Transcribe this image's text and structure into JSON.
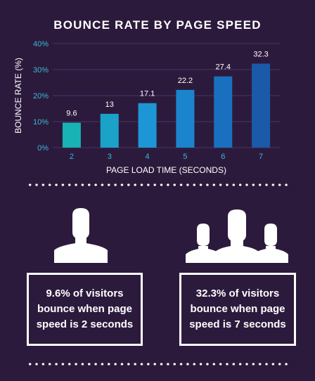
{
  "title": "BOUNCE RATE BY PAGE SPEED",
  "chart_data": {
    "type": "bar",
    "title": "BOUNCE RATE BY PAGE SPEED",
    "xlabel": "PAGE LOAD TIME (SECONDS)",
    "ylabel": "BOUNCE RATE (%)",
    "categories": [
      "2",
      "3",
      "4",
      "5",
      "6",
      "7"
    ],
    "values": [
      9.6,
      13,
      17.1,
      22.2,
      27.4,
      32.3
    ],
    "value_labels": [
      "9.6",
      "13",
      "17.1",
      "22.2",
      "27.4",
      "32.3"
    ],
    "ylim": [
      0,
      40
    ],
    "yticks": [
      "0%",
      "10%",
      "20%",
      "30%",
      "40%"
    ],
    "grid": true,
    "colors": {
      "bar_gradient": [
        "#18b3b4",
        "#1ba2c9",
        "#1d96d5",
        "#1a85cc",
        "#1a70bf",
        "#1a5aa8"
      ],
      "tick_labels": "#38b9d6",
      "gridline": "#45346a"
    }
  },
  "stats": [
    {
      "text": "9.6% of visitors bounce when page speed is 2 seconds",
      "icon": "single-user-icon"
    },
    {
      "text": "32.3% of visitors bounce when page speed is 7 seconds",
      "icon": "user-group-icon"
    }
  ]
}
